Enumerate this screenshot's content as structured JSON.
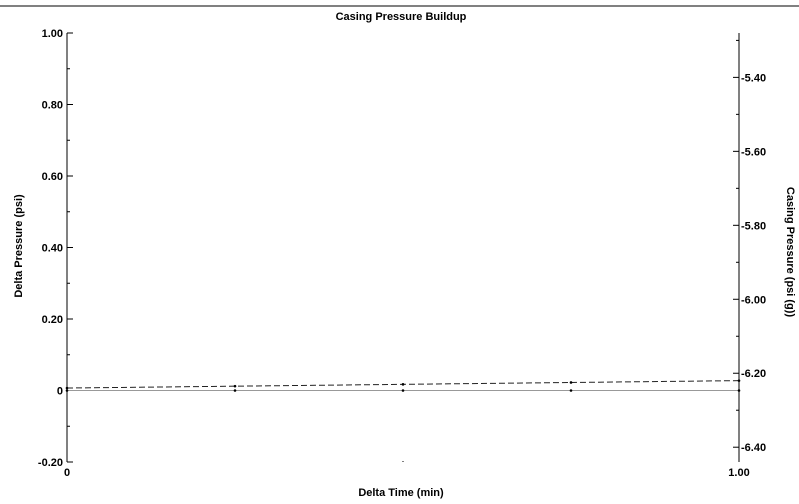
{
  "chart_data": {
    "type": "line",
    "title": "Casing Pressure Buildup",
    "xlabel": "Delta Time (min)",
    "ylabel": "Delta Pressure (psi)",
    "y2label": "Casing Pressure (psi (g))",
    "xlim": [
      0,
      1.0
    ],
    "ylim": [
      -0.2,
      1.0
    ],
    "y2lim": [
      -6.44,
      -5.28
    ],
    "x_ticks": [
      {
        "value": 0,
        "label": "0"
      },
      {
        "value": 1.0,
        "label": "1.00"
      }
    ],
    "y_ticks": [
      {
        "value": 1.0,
        "label": "1.00"
      },
      {
        "value": 0.8,
        "label": "0.80"
      },
      {
        "value": 0.6,
        "label": "0.60"
      },
      {
        "value": 0.4,
        "label": "0.40"
      },
      {
        "value": 0.2,
        "label": "0.20"
      },
      {
        "value": 0,
        "label": "0"
      },
      {
        "value": -0.2,
        "label": "-0.20"
      }
    ],
    "y2_ticks": [
      {
        "value": -5.4,
        "label": "-5.40"
      },
      {
        "value": -5.6,
        "label": "-5.60"
      },
      {
        "value": -5.8,
        "label": "-5.80"
      },
      {
        "value": -6.0,
        "label": "-6.00"
      },
      {
        "value": -6.2,
        "label": "-6.20"
      },
      {
        "value": -6.4,
        "label": "-6.40"
      }
    ],
    "series": [
      {
        "axis": "left",
        "style": "solid",
        "x": [
          0,
          0.25,
          0.5,
          0.75,
          1.0
        ],
        "values": [
          0,
          0,
          0,
          0,
          0
        ]
      },
      {
        "axis": "right",
        "style": "dashed",
        "x": [
          0,
          0.25,
          0.5,
          0.75,
          1.0
        ],
        "values": [
          -6.24,
          -6.235,
          -6.23,
          -6.225,
          -6.22
        ]
      }
    ],
    "grid": false,
    "legend": "none"
  }
}
